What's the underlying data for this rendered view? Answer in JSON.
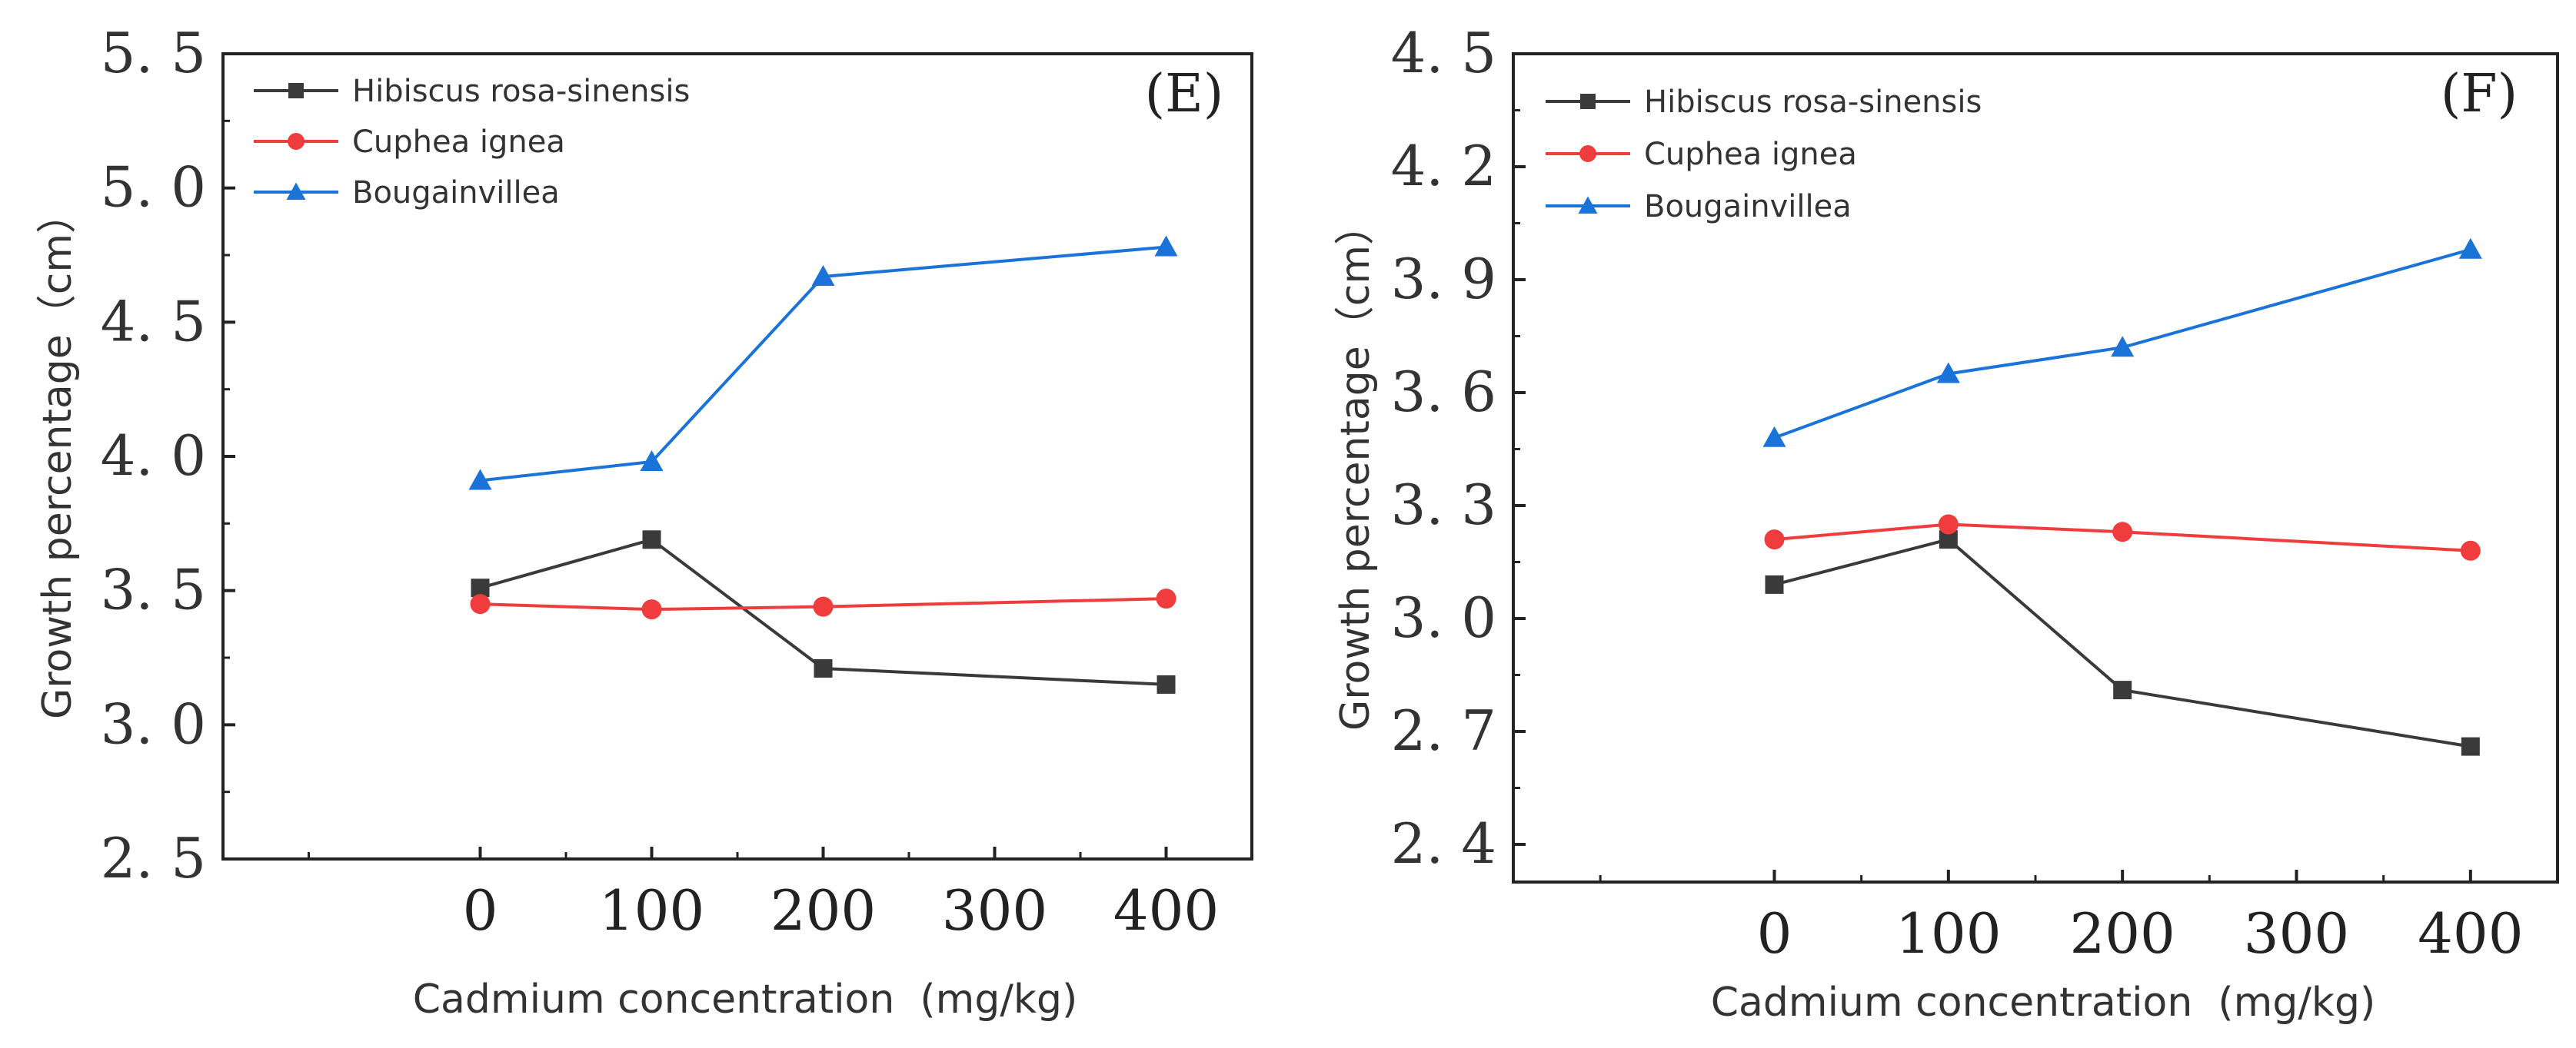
{
  "chart_data": [
    {
      "type": "line",
      "panel_label": "(E)",
      "xlabel": "Cadmium concentration  (mg/kg)",
      "ylabel": "Growth percentage（cm）",
      "xlim": [
        -150,
        450
      ],
      "ylim": [
        2.5,
        5.5
      ],
      "xticks": [
        0,
        100,
        200,
        300,
        400
      ],
      "yticks": [
        2.5,
        3.0,
        3.5,
        4.0,
        4.5,
        5.0,
        5.5
      ],
      "xtick_labels": [
        "0",
        "100",
        "200",
        "300",
        "400"
      ],
      "ytick_labels": [
        "2. 5",
        "3. 0",
        "3. 5",
        "4. 0",
        "4. 5",
        "5. 0",
        "5. 5"
      ],
      "legend_position": "top-left",
      "x": [
        0,
        100,
        200,
        300,
        400
      ],
      "series": [
        {
          "name": "Hibiscus rosa-sinensis",
          "color": "#3a3a3a",
          "marker": "square",
          "x": [
            0,
            100,
            200,
            400
          ],
          "values": [
            3.51,
            3.69,
            3.21,
            3.15
          ]
        },
        {
          "name": "Cuphea ignea",
          "color": "#f03c3c",
          "marker": "circle",
          "x": [
            0,
            100,
            200,
            400
          ],
          "values": [
            3.45,
            3.43,
            3.44,
            3.47
          ]
        },
        {
          "name": "Bougainvillea",
          "color": "#1a73d9",
          "marker": "triangle",
          "x": [
            0,
            100,
            200,
            400
          ],
          "values": [
            3.91,
            3.98,
            4.67,
            4.78
          ]
        }
      ]
    },
    {
      "type": "line",
      "panel_label": "(F)",
      "xlabel": "Cadmium concentration  (mg/kg)",
      "ylabel": "Growth percentage（cm）",
      "xlim": [
        -150,
        450
      ],
      "ylim": [
        2.3,
        4.5
      ],
      "xticks": [
        0,
        100,
        200,
        300,
        400
      ],
      "yticks": [
        2.4,
        2.7,
        3.0,
        3.3,
        3.6,
        3.9,
        4.2,
        4.5
      ],
      "xtick_labels": [
        "0",
        "100",
        "200",
        "300",
        "400"
      ],
      "ytick_labels": [
        "2. 4",
        "2. 7",
        "3. 0",
        "3. 3",
        "3. 6",
        "3. 9",
        "4. 2",
        "4. 5"
      ],
      "legend_position": "top-left",
      "x": [
        0,
        100,
        200,
        300,
        400
      ],
      "series": [
        {
          "name": "Hibiscus rosa-sinensis",
          "color": "#3a3a3a",
          "marker": "square",
          "x": [
            0,
            100,
            200,
            400
          ],
          "values": [
            3.09,
            3.21,
            2.81,
            2.66
          ]
        },
        {
          "name": "Cuphea ignea",
          "color": "#f03c3c",
          "marker": "circle",
          "x": [
            0,
            100,
            200,
            400
          ],
          "values": [
            3.21,
            3.25,
            3.23,
            3.18
          ]
        },
        {
          "name": "Bougainvillea",
          "color": "#1a73d9",
          "marker": "triangle",
          "x": [
            0,
            100,
            200,
            400
          ],
          "values": [
            3.48,
            3.65,
            3.72,
            3.98
          ]
        }
      ]
    }
  ]
}
